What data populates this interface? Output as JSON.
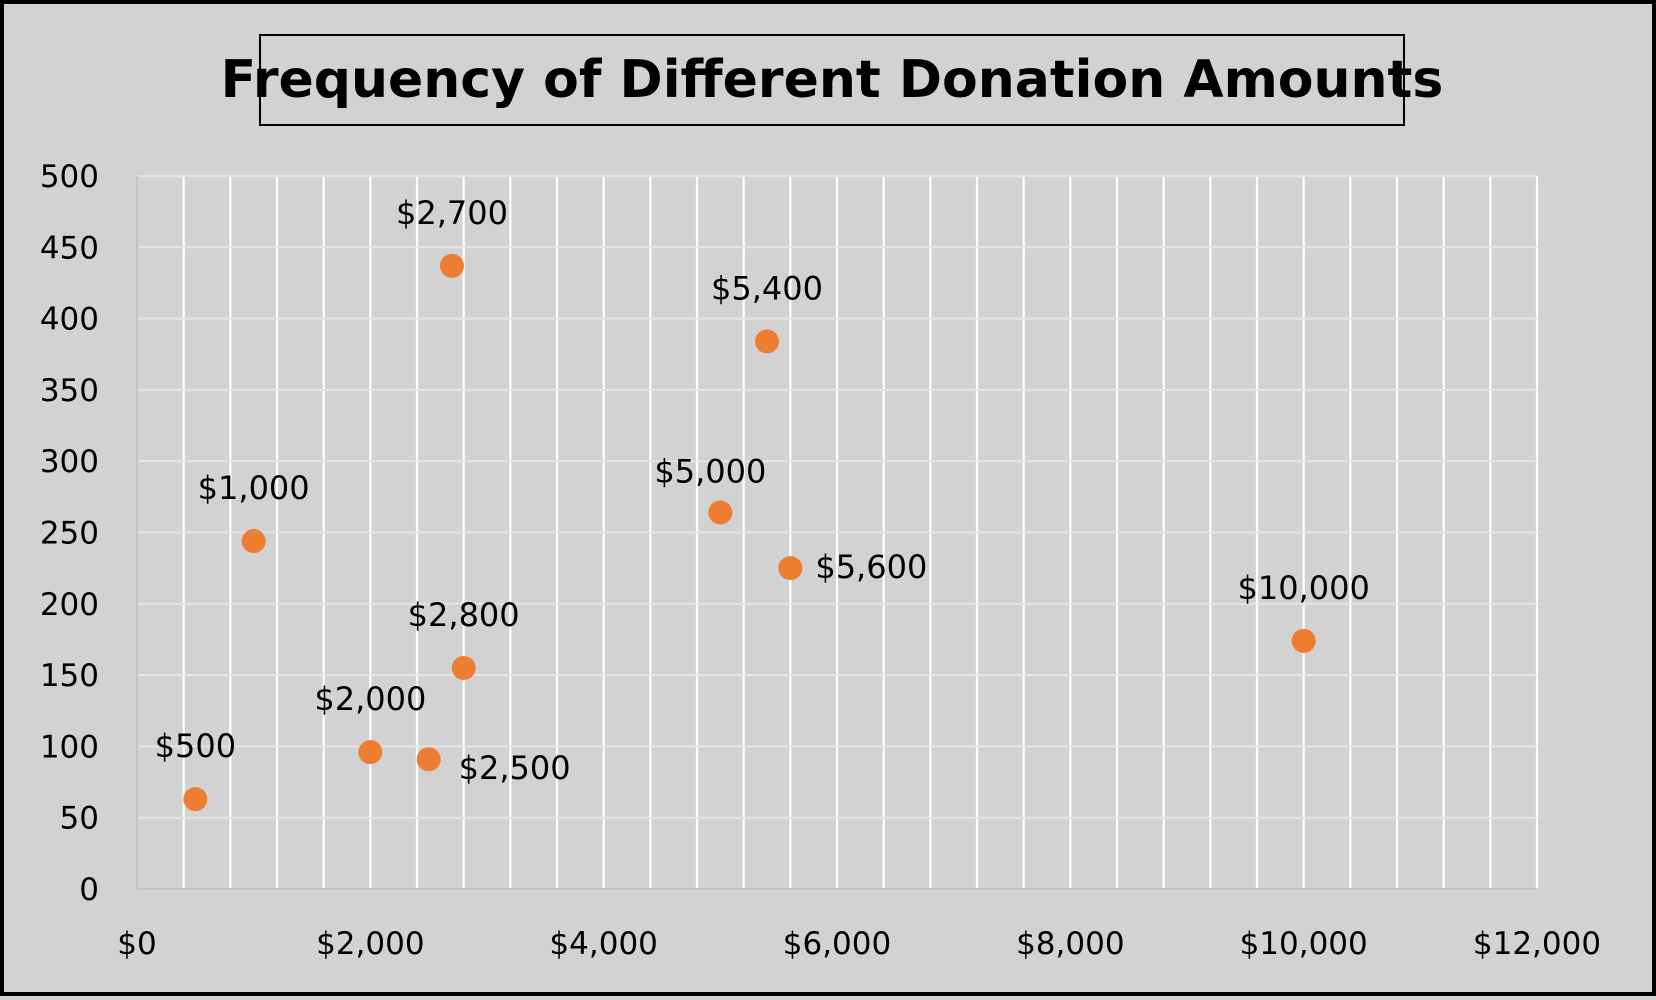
{
  "chart_data": {
    "type": "scatter",
    "title": "Frequency of Different Donation Amounts",
    "xlabel": "",
    "ylabel": "",
    "xlim": [
      0,
      12000
    ],
    "ylim": [
      0,
      500
    ],
    "x_ticks": [
      0,
      2000,
      4000,
      6000,
      8000,
      10000,
      12000
    ],
    "x_tick_labels": [
      "$0",
      "$2,000",
      "$4,000",
      "$6,000",
      "$8,000",
      "$10,000",
      "$12,000"
    ],
    "y_ticks": [
      0,
      50,
      100,
      150,
      200,
      250,
      300,
      350,
      400,
      450,
      500
    ],
    "y_tick_labels": [
      "0",
      "50",
      "100",
      "150",
      "200",
      "250",
      "300",
      "350",
      "400",
      "450",
      "500"
    ],
    "grid": true,
    "legend": "none",
    "marker_color": "#ed7d31",
    "points": [
      {
        "x": 500,
        "y": 63,
        "label": "$500",
        "label_pos": "above"
      },
      {
        "x": 1000,
        "y": 244,
        "label": "$1,000",
        "label_pos": "above"
      },
      {
        "x": 2000,
        "y": 96,
        "label": "$2,000",
        "label_pos": "above"
      },
      {
        "x": 2500,
        "y": 91,
        "label": "$2,500",
        "label_pos": "below-right"
      },
      {
        "x": 2700,
        "y": 437,
        "label": "$2,700",
        "label_pos": "above"
      },
      {
        "x": 2800,
        "y": 155,
        "label": "$2,800",
        "label_pos": "above"
      },
      {
        "x": 5000,
        "y": 264,
        "label": "$5,000",
        "label_pos": "above-left"
      },
      {
        "x": 5400,
        "y": 384,
        "label": "$5,400",
        "label_pos": "above"
      },
      {
        "x": 5600,
        "y": 225,
        "label": "$5,600",
        "label_pos": "right"
      },
      {
        "x": 10000,
        "y": 174,
        "label": "$10,000",
        "label_pos": "above"
      }
    ]
  }
}
